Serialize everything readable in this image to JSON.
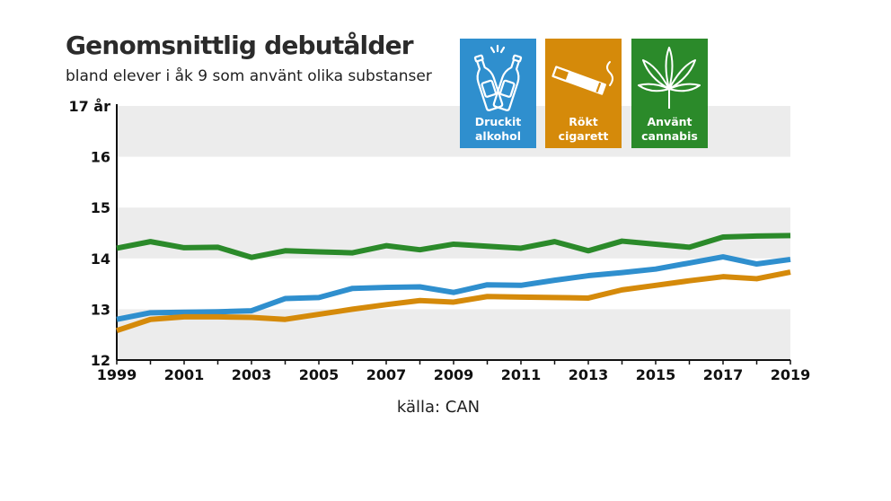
{
  "header": {
    "title": "Genomsnittlig debutålder",
    "subtitle": "bland elever i åk 9 som använt olika substanser"
  },
  "source": "källa: CAN",
  "legend": [
    {
      "label": "Druckit\nalkohol",
      "color": "#2f8fce",
      "icon": "beer-bottles-icon"
    },
    {
      "label": "Rökt\ncigarett",
      "color": "#d58a0a",
      "icon": "cigarette-icon"
    },
    {
      "label": "Använt\ncannabis",
      "color": "#2b8a2a",
      "icon": "cannabis-leaf-icon"
    }
  ],
  "chart_data": {
    "type": "line",
    "x": [
      1999,
      2000,
      2001,
      2002,
      2003,
      2004,
      2005,
      2006,
      2007,
      2008,
      2009,
      2010,
      2011,
      2012,
      2013,
      2014,
      2015,
      2016,
      2017,
      2018,
      2019
    ],
    "xticks": [
      "1999",
      "2001",
      "2003",
      "2005",
      "2007",
      "2009",
      "2011",
      "2013",
      "2015",
      "2017",
      "2019"
    ],
    "yticks": [
      "12",
      "13",
      "14",
      "15",
      "16",
      "17 år"
    ],
    "ylim": [
      12,
      17
    ],
    "xlim": [
      1999,
      2019
    ],
    "grid": "alternating horizontal bands",
    "legend_position": "top-right",
    "series": [
      {
        "name": "Använt cannabis",
        "color": "#2b8a2a",
        "values": [
          14.2,
          14.33,
          14.21,
          14.22,
          14.02,
          14.15,
          14.13,
          14.11,
          14.25,
          14.17,
          14.28,
          14.24,
          14.2,
          14.33,
          14.15,
          14.34,
          14.28,
          14.22,
          14.42,
          14.44,
          14.45
        ]
      },
      {
        "name": "Druckit alkohol",
        "color": "#2f8fce",
        "values": [
          12.8,
          12.93,
          12.94,
          12.95,
          12.97,
          13.21,
          13.23,
          13.41,
          13.43,
          13.44,
          13.33,
          13.48,
          13.47,
          13.57,
          13.66,
          13.72,
          13.79,
          13.91,
          14.03,
          13.89,
          13.98
        ]
      },
      {
        "name": "Rökt cigarett",
        "color": "#d58a0a",
        "values": [
          12.58,
          12.8,
          12.85,
          12.85,
          12.84,
          12.8,
          12.9,
          13.0,
          13.09,
          13.17,
          13.14,
          13.25,
          13.24,
          13.23,
          13.22,
          13.38,
          13.47,
          13.56,
          13.64,
          13.6,
          13.73
        ]
      }
    ]
  }
}
